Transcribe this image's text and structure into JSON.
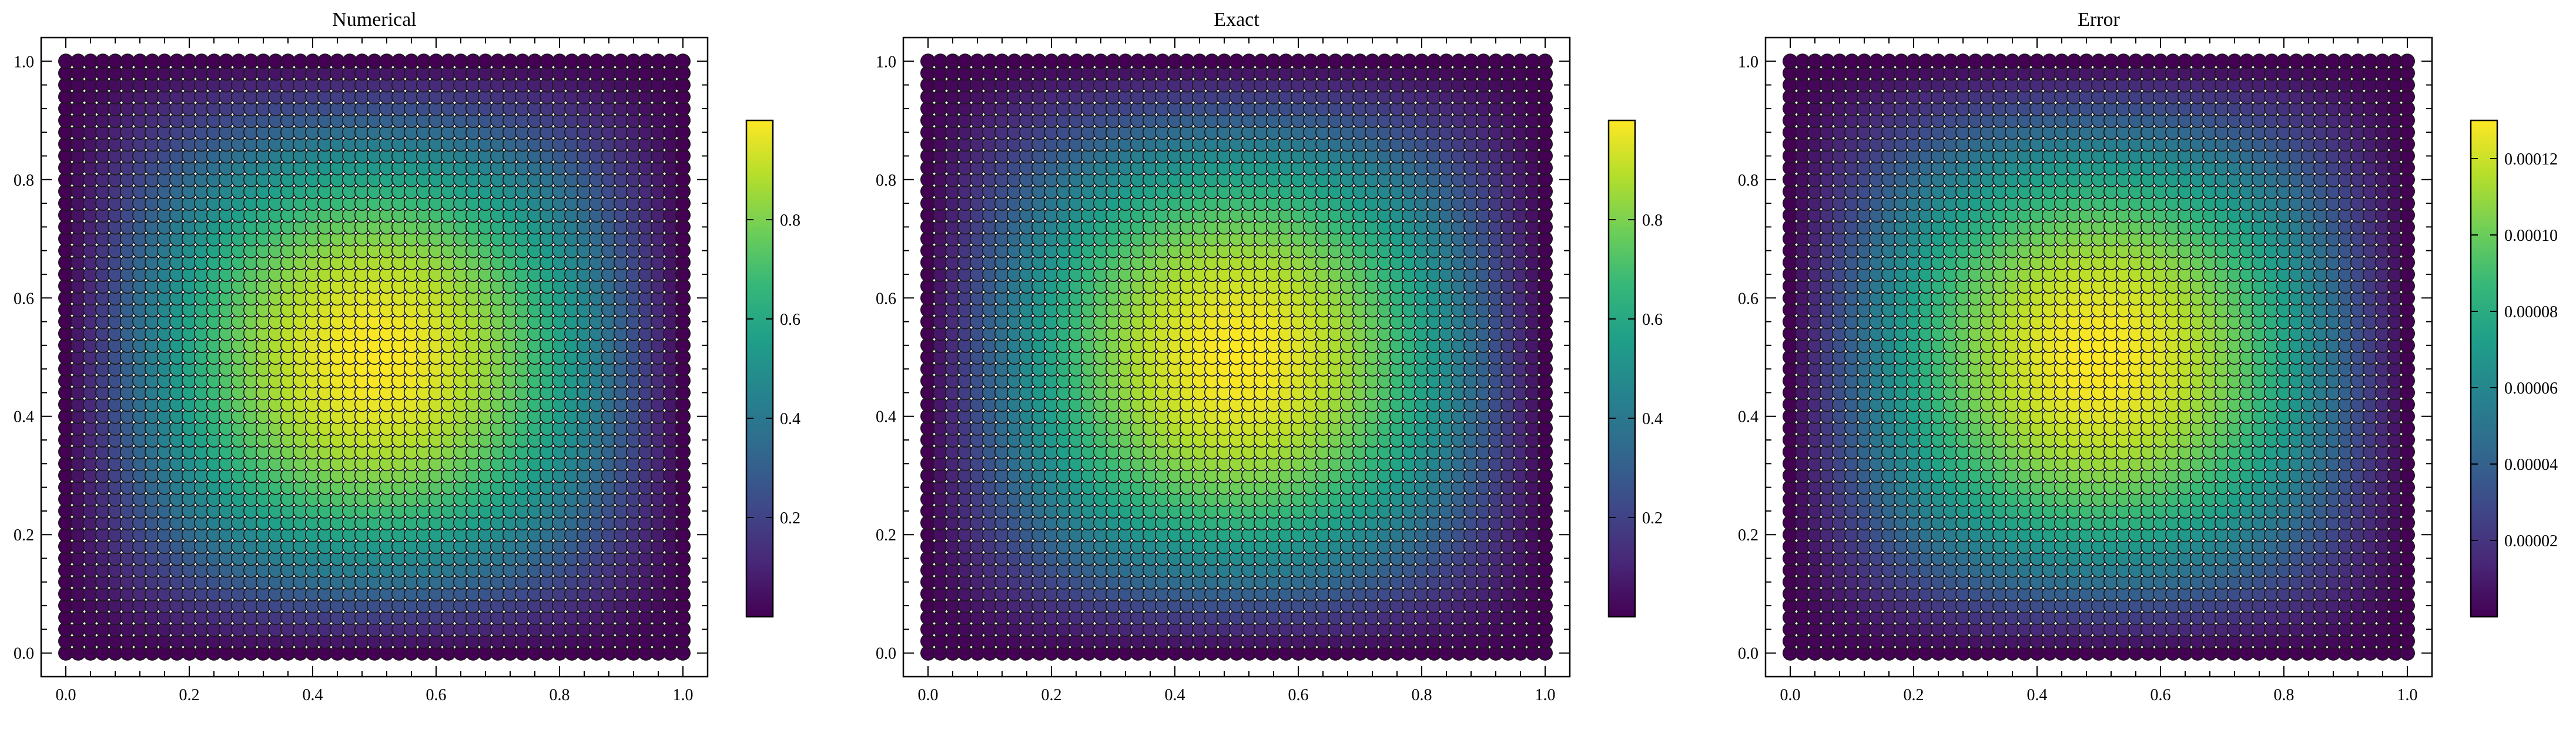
{
  "chart_data": [
    {
      "type": "scatter",
      "title": "Numerical",
      "xlabel": "",
      "ylabel": "",
      "xlim": [
        -0.04,
        1.04
      ],
      "ylim": [
        -0.04,
        1.04
      ],
      "xticks": [
        "0.0",
        "0.2",
        "0.4",
        "0.6",
        "0.8",
        "1.0"
      ],
      "yticks": [
        "0.0",
        "0.2",
        "0.4",
        "0.6",
        "0.8",
        "1.0"
      ],
      "grid": false,
      "field": "u(x,y) = sin(pi x) * sin(pi y) sampled on uniform 51x51 grid over [0,1]x[0,1]",
      "colormap": "viridis",
      "colorbar": {
        "min": 0.0,
        "max": 1.0,
        "ticks": [
          "0.2",
          "0.4",
          "0.6",
          "0.8"
        ]
      }
    },
    {
      "type": "scatter",
      "title": "Exact",
      "xlabel": "",
      "ylabel": "",
      "xlim": [
        -0.04,
        1.04
      ],
      "ylim": [
        -0.04,
        1.04
      ],
      "xticks": [
        "0.0",
        "0.2",
        "0.4",
        "0.6",
        "0.8",
        "1.0"
      ],
      "yticks": [
        "0.0",
        "0.2",
        "0.4",
        "0.6",
        "0.8",
        "1.0"
      ],
      "grid": false,
      "field": "u(x,y) = sin(pi x) * sin(pi y) sampled on uniform 51x51 grid over [0,1]x[0,1]",
      "colormap": "viridis",
      "colorbar": {
        "min": 0.0,
        "max": 1.0,
        "ticks": [
          "0.2",
          "0.4",
          "0.6",
          "0.8"
        ]
      }
    },
    {
      "type": "scatter",
      "title": "Error",
      "xlabel": "",
      "ylabel": "",
      "xlim": [
        -0.04,
        1.04
      ],
      "ylim": [
        -0.04,
        1.04
      ],
      "xticks": [
        "0.0",
        "0.2",
        "0.4",
        "0.6",
        "0.8",
        "1.0"
      ],
      "yticks": [
        "0.0",
        "0.2",
        "0.4",
        "0.6",
        "0.8",
        "1.0"
      ],
      "grid": false,
      "field": "|error|(x,y) ~ 0.00013 * sin(pi x) * sin(pi y) sampled on uniform 51x51 grid",
      "colormap": "viridis",
      "colorbar": {
        "min": 0.0,
        "max": 0.00013,
        "ticks": [
          "0.00002",
          "0.00004",
          "0.00006",
          "0.00008",
          "0.00010",
          "0.00012"
        ]
      }
    }
  ],
  "colors": {
    "viridis_stops": [
      "#440154",
      "#482878",
      "#3e4989",
      "#31688e",
      "#26828e",
      "#1f9e89",
      "#35b779",
      "#6ece58",
      "#b5de2b",
      "#fde725"
    ],
    "marker_edge": "#1a1a1a"
  }
}
